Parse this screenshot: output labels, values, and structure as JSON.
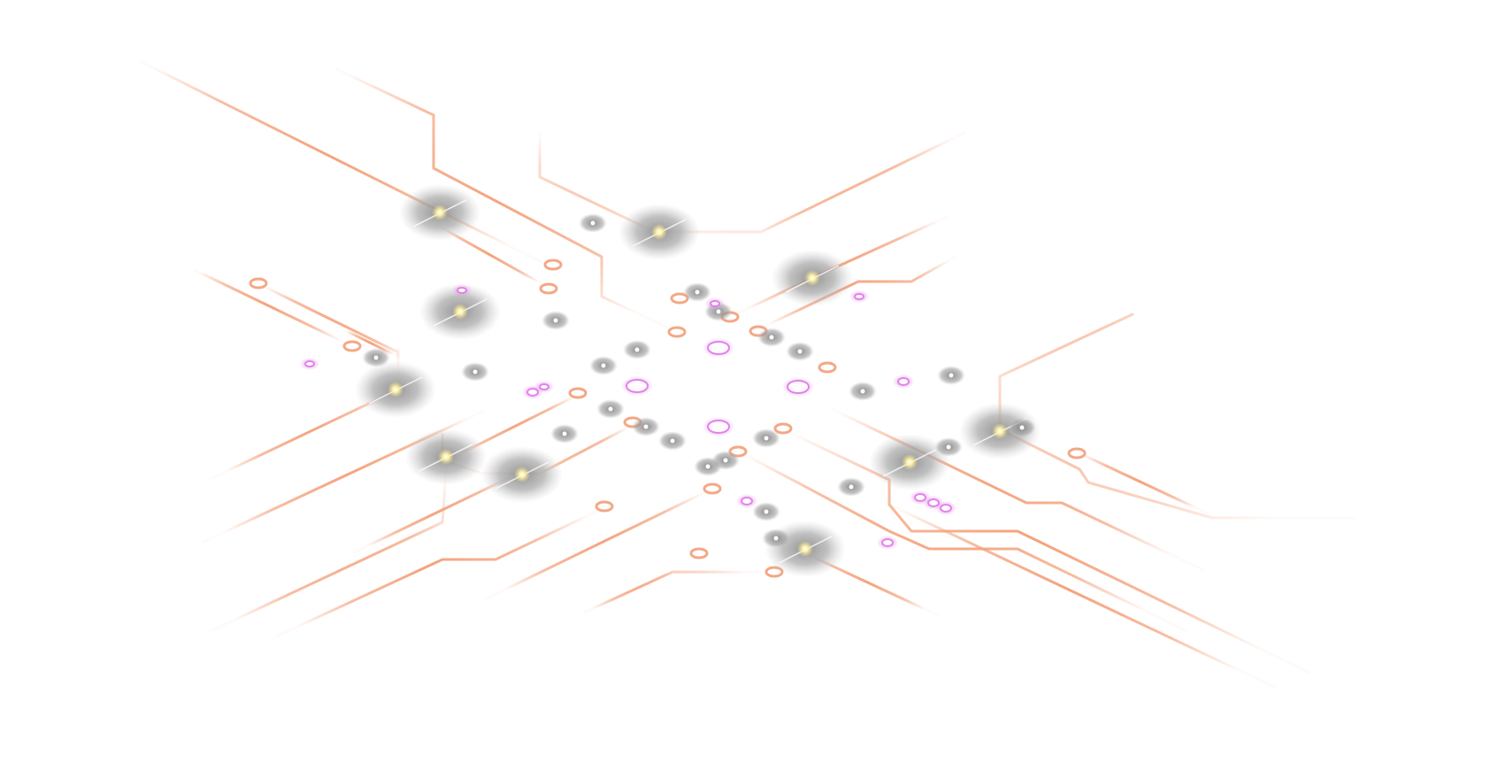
{
  "artwork": {
    "subject": "circuit-board-network",
    "colors": {
      "background": "#ffffff",
      "trace": "#f4a27c",
      "pad_ring": "#f29a72",
      "node_glow": "#9a9a9a",
      "node_core": "#fff4b8",
      "accent": "#e07ae8"
    }
  }
}
